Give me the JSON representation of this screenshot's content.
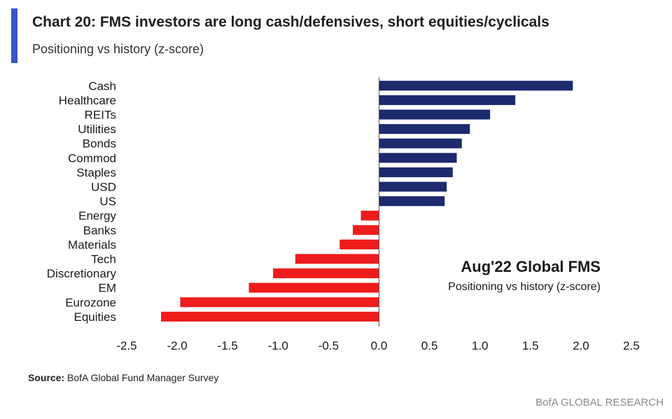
{
  "header": {
    "title": "Chart 20: FMS investors are long cash/defensives, short equities/cyclicals",
    "subtitle": "Positioning vs history (z-score)"
  },
  "chart_data": {
    "type": "bar",
    "orientation": "horizontal",
    "categories": [
      "Cash",
      "Healthcare",
      "REITs",
      "Utilities",
      "Bonds",
      "Commod",
      "Staples",
      "USD",
      "US",
      "Energy",
      "Banks",
      "Materials",
      "Tech",
      "Discretionary",
      "EM",
      "Eurozone",
      "Equities"
    ],
    "values": [
      1.92,
      1.35,
      1.1,
      0.9,
      0.82,
      0.77,
      0.73,
      0.67,
      0.65,
      -0.18,
      -0.26,
      -0.39,
      -0.83,
      -1.05,
      -1.29,
      -1.97,
      -2.16
    ],
    "xlim": [
      -2.5,
      2.5
    ],
    "xticks": [
      -2.5,
      -2.0,
      -1.5,
      -1.0,
      -0.5,
      0.0,
      0.5,
      1.0,
      1.5,
      2.0,
      2.5
    ],
    "xtick_labels": [
      "-2.5",
      "-2.0",
      "-1.5",
      "-1.0",
      "-0.5",
      "0.0",
      "0.5",
      "1.0",
      "1.5",
      "2.0",
      "2.5"
    ],
    "colors": {
      "positive": "#1c2a6e",
      "negative": "#ee1c1c",
      "axis": "#555555"
    },
    "annotation": {
      "title": "Aug'22 Global FMS",
      "subtitle": "Positioning vs history (z-score)"
    },
    "grid": false
  },
  "footer": {
    "source_label": "Source:",
    "source_text": " BofA Global Fund Manager Survey",
    "brand": "BofA GLOBAL RESEARCH"
  }
}
